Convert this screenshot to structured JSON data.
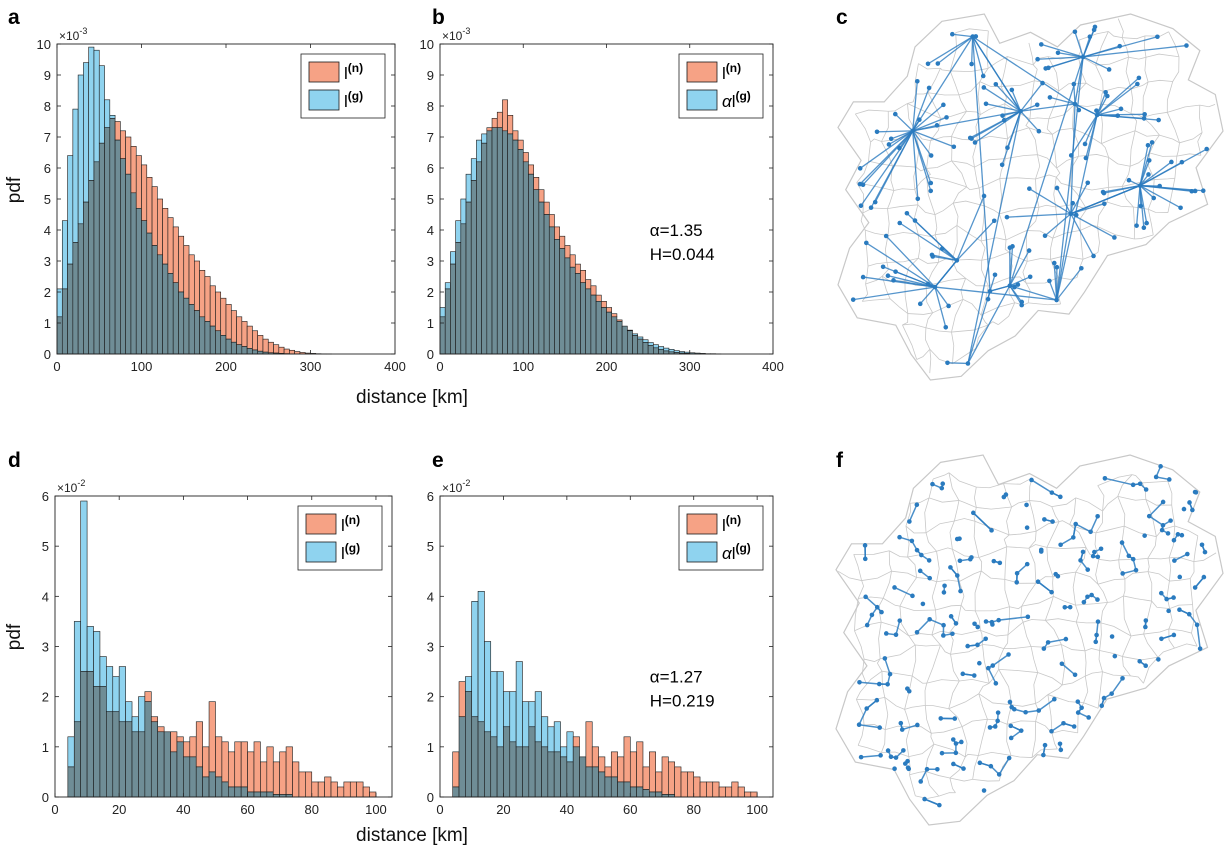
{
  "colors": {
    "n_fill": "#f6a285",
    "g_fill": "#8fd3ef",
    "overlap": "#6f8d96",
    "edge": "#1a1a1a",
    "map_border": "#c8c8c8",
    "network": "#2a7bbf"
  },
  "panel_letters": [
    "a",
    "b",
    "c",
    "d",
    "e",
    "f"
  ],
  "axis_texts": {
    "pdf_label": "pdf",
    "distance_label": "distance [km]",
    "top_exponent_base": "×10",
    "top_exponent_power": "-3",
    "bottom_exponent_base": "×10",
    "bottom_exponent_power": "-2"
  },
  "legend": {
    "n_letter": "l",
    "n_sup": "(n)",
    "g_letter": "l",
    "g_sup": "(g)",
    "alpha_prefix": "α"
  },
  "stats": {
    "b_alpha": "α=1.35",
    "b_H": "H=0.044",
    "e_alpha": "α=1.27",
    "e_H": "H=0.219"
  },
  "maps": {
    "c": {
      "icon": "network-map-icon",
      "description_items": [
        "region-map",
        "long-distance-links"
      ]
    },
    "f": {
      "icon": "network-map-icon",
      "description_items": [
        "region-map",
        "short-distance-links"
      ]
    }
  },
  "chart_data": [
    {
      "panel": "a",
      "type": "bar",
      "xlim": [
        0,
        400
      ],
      "ylim": [
        0,
        10
      ],
      "xticks": [
        0,
        100,
        200,
        300,
        400
      ],
      "yticks": [
        0,
        1,
        2,
        3,
        4,
        5,
        6,
        7,
        8,
        9,
        10
      ],
      "y_scale_exponent": -3,
      "bin_width": 6.25,
      "bin_start": 0,
      "series": [
        {
          "name": "l(n)",
          "values": [
            1.2,
            2.1,
            2.9,
            3.6,
            4.2,
            4.9,
            5.6,
            6.2,
            6.8,
            7.3,
            7.6,
            7.5,
            7.2,
            7.0,
            6.7,
            6.4,
            6.1,
            5.7,
            5.4,
            5.0,
            4.7,
            4.4,
            4.1,
            3.8,
            3.5,
            3.2,
            3.0,
            2.7,
            2.5,
            2.2,
            2.0,
            1.8,
            1.6,
            1.4,
            1.2,
            1.05,
            0.9,
            0.75,
            0.6,
            0.48,
            0.38,
            0.3,
            0.22,
            0.16,
            0.12,
            0.08,
            0.05,
            0.03,
            0.02,
            0.01,
            0.005,
            0.003,
            0,
            0,
            0,
            0,
            0,
            0,
            0,
            0,
            0,
            0,
            0,
            0
          ]
        },
        {
          "name": "l(g)",
          "values": [
            2.1,
            4.3,
            6.4,
            7.9,
            9.0,
            9.4,
            9.9,
            9.8,
            9.3,
            8.2,
            7.7,
            6.9,
            6.3,
            5.8,
            5.2,
            4.7,
            4.3,
            3.9,
            3.5,
            3.2,
            2.9,
            2.6,
            2.3,
            2.0,
            1.8,
            1.6,
            1.4,
            1.2,
            1.05,
            0.9,
            0.75,
            0.6,
            0.48,
            0.38,
            0.3,
            0.24,
            0.18,
            0.13,
            0.09,
            0.06,
            0.04,
            0.03,
            0.02,
            0.01,
            0.005,
            0,
            0,
            0,
            0,
            0,
            0,
            0,
            0,
            0,
            0,
            0,
            0,
            0,
            0,
            0,
            0,
            0,
            0,
            0
          ]
        }
      ],
      "xlabel": "distance [km]",
      "ylabel": "pdf"
    },
    {
      "panel": "b",
      "type": "bar",
      "xlim": [
        0,
        400
      ],
      "ylim": [
        0,
        10
      ],
      "xticks": [
        0,
        100,
        200,
        300,
        400
      ],
      "yticks": [
        0,
        1,
        2,
        3,
        4,
        5,
        6,
        7,
        8,
        9,
        10
      ],
      "y_scale_exponent": -3,
      "bin_width": 6.25,
      "bin_start": 0,
      "series": [
        {
          "name": "l(n)",
          "values": [
            1.2,
            2.1,
            2.9,
            3.6,
            4.2,
            4.9,
            5.6,
            6.2,
            6.8,
            7.3,
            7.6,
            7.8,
            8.2,
            7.7,
            7.2,
            6.9,
            6.5,
            6.1,
            5.7,
            5.3,
            4.9,
            4.5,
            4.1,
            3.8,
            3.5,
            3.2,
            2.9,
            2.7,
            2.4,
            2.2,
            1.9,
            1.7,
            1.5,
            1.3,
            1.1,
            0.9,
            0.75,
            0.6,
            0.48,
            0.37,
            0.28,
            0.2,
            0.14,
            0.1,
            0.07,
            0.05,
            0.03,
            0.02,
            0.01,
            0.005,
            0,
            0,
            0,
            0,
            0,
            0,
            0,
            0,
            0,
            0,
            0,
            0,
            0,
            0
          ]
        },
        {
          "name": "αl(g)",
          "values": [
            1.5,
            2.3,
            3.3,
            4.3,
            5.0,
            5.8,
            6.3,
            6.9,
            7.1,
            7.2,
            7.3,
            7.3,
            7.2,
            7.1,
            6.9,
            6.6,
            6.2,
            5.8,
            5.3,
            4.9,
            4.5,
            4.1,
            3.7,
            3.4,
            3.1,
            2.8,
            2.6,
            2.3,
            2.1,
            1.9,
            1.7,
            1.5,
            1.35,
            1.2,
            1.05,
            0.9,
            0.77,
            0.65,
            0.55,
            0.46,
            0.37,
            0.3,
            0.24,
            0.19,
            0.15,
            0.11,
            0.08,
            0.06,
            0.04,
            0.03,
            0.02,
            0.01,
            0.01,
            0.005,
            0,
            0,
            0,
            0,
            0,
            0,
            0,
            0,
            0,
            0
          ]
        }
      ],
      "annotations": [
        "α=1.35",
        "H=0.044"
      ],
      "xlabel": "",
      "ylabel": ""
    },
    {
      "panel": "d",
      "type": "bar",
      "xlim": [
        0,
        105
      ],
      "ylim": [
        0,
        6
      ],
      "xticks": [
        0,
        20,
        40,
        60,
        80,
        100
      ],
      "yticks": [
        0,
        1,
        2,
        3,
        4,
        5,
        6
      ],
      "y_scale_exponent": -2,
      "bin_width": 2,
      "bin_start": 4,
      "series": [
        {
          "name": "l(n)",
          "values": [
            0.6,
            1.5,
            2.5,
            2.5,
            2.2,
            2.2,
            1.7,
            1.7,
            1.5,
            1.5,
            1.3,
            1.3,
            2.1,
            1.6,
            1.4,
            1.3,
            1.3,
            1.2,
            1.1,
            1.2,
            1.5,
            1.0,
            1.9,
            1.2,
            1.1,
            0.9,
            1.1,
            1.1,
            0.9,
            1.1,
            0.7,
            1.0,
            0.7,
            0.9,
            1.0,
            0.7,
            0.5,
            0.5,
            0.3,
            0.3,
            0.4,
            0.3,
            0.2,
            0.3,
            0.3,
            0.3,
            0.2,
            0.1
          ]
        },
        {
          "name": "l(g)",
          "values": [
            1.2,
            3.5,
            5.9,
            3.4,
            3.3,
            2.8,
            2.6,
            2.4,
            2.6,
            1.9,
            1.6,
            2.0,
            1.9,
            1.5,
            1.3,
            1.3,
            0.9,
            1.1,
            0.8,
            0.8,
            0.6,
            0.4,
            0.5,
            0.4,
            0.3,
            0.2,
            0.2,
            0.2,
            0.1,
            0.1,
            0.1,
            0.1,
            0.05,
            0.05,
            0.05,
            0,
            0,
            0,
            0,
            0,
            0,
            0,
            0,
            0,
            0,
            0,
            0,
            0
          ]
        }
      ],
      "xlabel": "distance [km]",
      "ylabel": "pdf"
    },
    {
      "panel": "e",
      "type": "bar",
      "xlim": [
        0,
        105
      ],
      "ylim": [
        0,
        6
      ],
      "xticks": [
        0,
        20,
        40,
        60,
        80,
        100
      ],
      "yticks": [
        0,
        1,
        2,
        3,
        4,
        5,
        6
      ],
      "y_scale_exponent": -2,
      "bin_width": 2,
      "bin_start": 4,
      "series": [
        {
          "name": "l(n)",
          "values": [
            0.9,
            2.3,
            2.1,
            1.6,
            1.5,
            1.3,
            1.2,
            1.0,
            1.4,
            1.1,
            1.0,
            1.0,
            1.4,
            1.1,
            1.0,
            0.9,
            0.9,
            0.8,
            0.7,
            1.2,
            0.8,
            1.5,
            1.0,
            0.8,
            0.6,
            0.9,
            0.8,
            1.2,
            0.9,
            1.1,
            0.6,
            0.9,
            0.5,
            0.8,
            0.7,
            0.6,
            0.5,
            0.5,
            0.4,
            0.3,
            0.3,
            0.3,
            0.2,
            0.2,
            0.3,
            0.2,
            0.1,
            0.1
          ]
        },
        {
          "name": "αl(g)",
          "values": [
            0.2,
            1.6,
            2.4,
            3.9,
            4.1,
            3.1,
            2.5,
            2.5,
            2.1,
            2.1,
            2.7,
            1.9,
            1.9,
            2.1,
            1.6,
            1.4,
            1.5,
            1.0,
            1.3,
            1.0,
            0.8,
            0.6,
            0.6,
            0.5,
            0.4,
            0.4,
            0.3,
            0.3,
            0.2,
            0.2,
            0.15,
            0.1,
            0.1,
            0.05,
            0.05,
            0,
            0,
            0,
            0,
            0,
            0,
            0,
            0,
            0,
            0,
            0,
            0,
            0
          ]
        }
      ],
      "annotations": [
        "α=1.27",
        "H=0.219"
      ],
      "xlabel": "",
      "ylabel": ""
    }
  ]
}
